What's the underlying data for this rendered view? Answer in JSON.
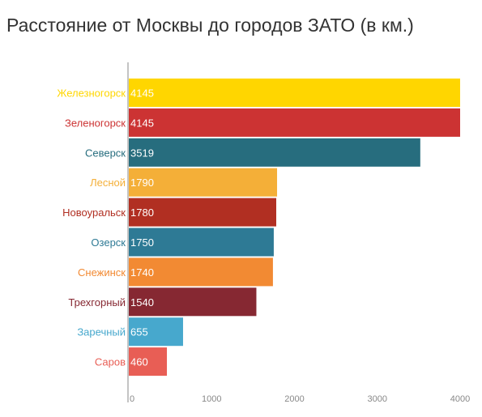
{
  "chart_data": {
    "type": "bar",
    "orientation": "horizontal",
    "title": "Расстояние от Москвы до городов ЗАТО (в км.)",
    "categories": [
      "Железногорск",
      "Зеленогорск",
      "Северск",
      "Лесной",
      "Новоуральск",
      "Озерск",
      "Снежинск",
      "Трехгорный",
      "Заречный",
      "Саров"
    ],
    "values": [
      4145,
      4145,
      3519,
      1790,
      1780,
      1750,
      1740,
      1540,
      655,
      460
    ],
    "colors": [
      "#FFD600",
      "#CC3333",
      "#276D7E",
      "#F4AF38",
      "#B12F22",
      "#2E7A95",
      "#F28A33",
      "#862832",
      "#47A8CD",
      "#E85E55"
    ],
    "xlim": [
      0,
      4000
    ],
    "xticks": [
      0,
      1000,
      2000,
      3000,
      4000
    ],
    "grid": false,
    "legend": false
  }
}
